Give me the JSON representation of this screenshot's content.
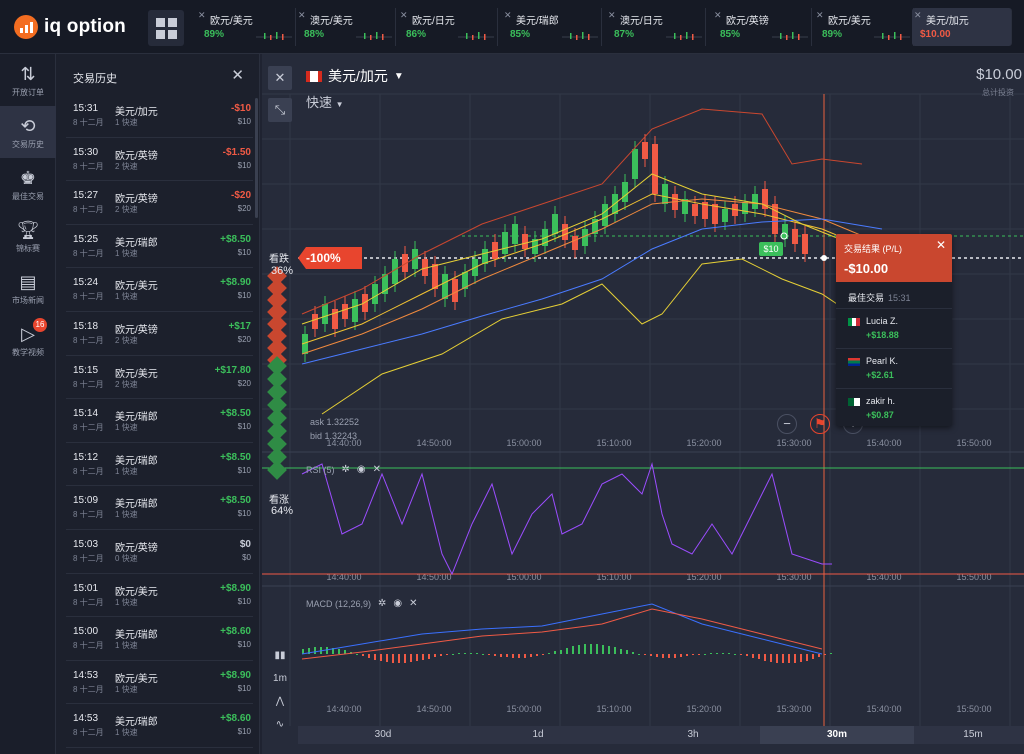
{
  "brand": {
    "name": "iq option"
  },
  "tabs": [
    {
      "name": "欧元/美元",
      "value": "89%",
      "active": false
    },
    {
      "name": "澳元/美元",
      "value": "88%",
      "active": false
    },
    {
      "name": "欧元/日元",
      "value": "86%",
      "active": false
    },
    {
      "name": "美元/瑞郎",
      "value": "85%",
      "active": false
    },
    {
      "name": "澳元/日元",
      "value": "87%",
      "active": false
    },
    {
      "name": "欧元/英镑",
      "value": "85%",
      "active": false
    },
    {
      "name": "欧元/美元",
      "value": "89%",
      "active": false
    },
    {
      "name": "美元/加元",
      "value": "$10.00",
      "active": true
    }
  ],
  "rail": [
    {
      "icon": "arrows-updown-icon",
      "label": "开放订单"
    },
    {
      "icon": "history-icon",
      "label": "交易历史",
      "active": true
    },
    {
      "icon": "top-traders-icon",
      "label": "最佳交易"
    },
    {
      "icon": "trophy-icon",
      "label": "锦标赛"
    },
    {
      "icon": "news-icon",
      "label": "市场新闻"
    },
    {
      "icon": "play-icon",
      "label": "教学视频",
      "badge": "16"
    }
  ],
  "history": {
    "title": "交易历史",
    "rows": [
      {
        "time": "15:31",
        "date": "8 十二月",
        "asset": "美元/加元",
        "mode": "1 快速",
        "pl": "-$10",
        "inv": "$10",
        "sign": "neg"
      },
      {
        "time": "15:30",
        "date": "8 十二月",
        "asset": "欧元/英镑",
        "mode": "2 快速",
        "pl": "-$1.50",
        "inv": "$10",
        "sign": "neg"
      },
      {
        "time": "15:27",
        "date": "8 十二月",
        "asset": "欧元/英镑",
        "mode": "2 快速",
        "pl": "-$20",
        "inv": "$20",
        "sign": "neg"
      },
      {
        "time": "15:25",
        "date": "8 十二月",
        "asset": "美元/瑞郎",
        "mode": "1 快速",
        "pl": "+$8.50",
        "inv": "$10",
        "sign": "pos"
      },
      {
        "time": "15:24",
        "date": "8 十二月",
        "asset": "欧元/美元",
        "mode": "1 快速",
        "pl": "+$8.90",
        "inv": "$10",
        "sign": "pos"
      },
      {
        "time": "15:18",
        "date": "8 十二月",
        "asset": "欧元/英镑",
        "mode": "2 快速",
        "pl": "+$17",
        "inv": "$20",
        "sign": "pos"
      },
      {
        "time": "15:15",
        "date": "8 十二月",
        "asset": "欧元/美元",
        "mode": "2 快速",
        "pl": "+$17.80",
        "inv": "$20",
        "sign": "pos"
      },
      {
        "time": "15:14",
        "date": "8 十二月",
        "asset": "美元/瑞郎",
        "mode": "1 快速",
        "pl": "+$8.50",
        "inv": "$10",
        "sign": "pos"
      },
      {
        "time": "15:12",
        "date": "8 十二月",
        "asset": "美元/瑞郎",
        "mode": "1 快速",
        "pl": "+$8.50",
        "inv": "$10",
        "sign": "pos"
      },
      {
        "time": "15:09",
        "date": "8 十二月",
        "asset": "美元/瑞郎",
        "mode": "1 快速",
        "pl": "+$8.50",
        "inv": "$10",
        "sign": "pos"
      },
      {
        "time": "15:03",
        "date": "8 十二月",
        "asset": "欧元/英镑",
        "mode": "0 快速",
        "pl": "$0",
        "inv": "$0",
        "sign": "zero"
      },
      {
        "time": "15:01",
        "date": "8 十二月",
        "asset": "欧元/美元",
        "mode": "1 快速",
        "pl": "+$8.90",
        "inv": "$10",
        "sign": "pos"
      },
      {
        "time": "15:00",
        "date": "8 十二月",
        "asset": "美元/瑞郎",
        "mode": "1 快速",
        "pl": "+$8.60",
        "inv": "$10",
        "sign": "pos"
      },
      {
        "time": "14:53",
        "date": "8 十二月",
        "asset": "欧元/美元",
        "mode": "1 快速",
        "pl": "+$8.90",
        "inv": "$10",
        "sign": "pos"
      },
      {
        "time": "14:53",
        "date": "8 十二月",
        "asset": "美元/瑞郎",
        "mode": "1 快速",
        "pl": "+$8.60",
        "inv": "$10",
        "sign": "pos"
      }
    ]
  },
  "chart": {
    "asset": "美元/加元",
    "mode": "快速",
    "investment": "$10.00",
    "investment_label": "总计投资",
    "down_label": "看跌",
    "down_pct": "36%",
    "up_label": "看涨",
    "up_pct": "64%",
    "price_tag": "-100%",
    "entry_tag": "$10",
    "ask": "ask 1.32252",
    "bid": "bid 1.32243",
    "rsi_label": "RSI (5)",
    "macd_label": "MACD (12,26,9)",
    "time_ticks": [
      "14:40:00",
      "14:50:00",
      "15:00:00",
      "15:10:00",
      "15:20:00",
      "15:30:00",
      "15:40:00",
      "15:50:00"
    ],
    "rsi_level": "70",
    "rsi_level_low": "30",
    "timeframes": [
      "30d",
      "1d",
      "3h",
      "30m",
      "15m"
    ],
    "active_timeframe": "30m",
    "left_tools": [
      "1m"
    ]
  },
  "result": {
    "title": "交易结果 (P/L)",
    "amount": "-$10.00",
    "best_label": "最佳交易",
    "best_time": "15:31",
    "traders": [
      {
        "name": "Lucia Z.",
        "amount": "+$18.88",
        "flag": "italy-flag"
      },
      {
        "name": "Pearl K.",
        "amount": "+$2.61",
        "flag": "south-africa-flag"
      },
      {
        "name": "zakir h.",
        "amount": "+$0.87",
        "flag": "algeria-flag"
      }
    ]
  },
  "colors": {
    "up": "#3bbf5b",
    "down": "#f05a45",
    "accent": "#f36d21",
    "rsi": "#9b4dff",
    "bg": "#262b3a"
  }
}
